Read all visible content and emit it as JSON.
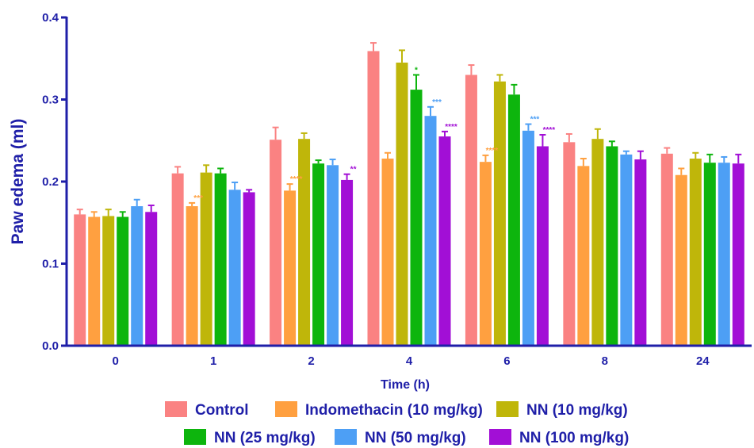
{
  "chart_data": {
    "type": "bar",
    "xlabel": "Time (h)",
    "ylabel": "Paw edema (ml)",
    "ylim": [
      0,
      0.4
    ],
    "yticks": [
      0.0,
      0.1,
      0.2,
      0.3,
      0.4
    ],
    "ytick_labels": [
      "0.0",
      "0.1",
      "0.2",
      "0.3",
      "0.4"
    ],
    "categories": [
      "0",
      "1",
      "2",
      "4",
      "6",
      "8",
      "24"
    ],
    "grid": false,
    "legend_position": "bottom",
    "series": [
      {
        "name": "Control",
        "color": "#fa8282",
        "values": [
          0.16,
          0.21,
          0.251,
          0.359,
          0.33,
          0.248,
          0.234
        ],
        "errors": [
          0.006,
          0.008,
          0.015,
          0.01,
          0.012,
          0.01,
          0.007
        ],
        "significance": [
          "",
          "",
          "",
          "",
          "",
          "",
          ""
        ]
      },
      {
        "name": "Indomethacin (10 mg/kg)",
        "color": "#ffa040",
        "values": [
          0.157,
          0.17,
          0.189,
          0.228,
          0.224,
          0.219,
          0.208
        ],
        "errors": [
          0.006,
          0.004,
          0.008,
          0.007,
          0.008,
          0.009,
          0.008
        ],
        "significance": [
          "",
          "***",
          "****",
          "",
          "****",
          "",
          ""
        ]
      },
      {
        "name": "NN (10 mg/kg)",
        "color": "#bfb60a",
        "values": [
          0.158,
          0.211,
          0.252,
          0.345,
          0.322,
          0.252,
          0.228
        ],
        "errors": [
          0.008,
          0.009,
          0.007,
          0.015,
          0.008,
          0.012,
          0.007
        ],
        "significance": [
          "",
          "",
          "",
          "",
          "",
          "",
          ""
        ]
      },
      {
        "name": "NN (25 mg/kg)",
        "color": "#0db50d",
        "values": [
          0.157,
          0.21,
          0.222,
          0.312,
          0.306,
          0.243,
          0.223
        ],
        "errors": [
          0.006,
          0.006,
          0.004,
          0.018,
          0.012,
          0.006,
          0.01
        ],
        "significance": [
          "",
          "",
          "",
          "*",
          "",
          "",
          ""
        ]
      },
      {
        "name": "NN (50 mg/kg)",
        "color": "#4d9ff5",
        "values": [
          0.17,
          0.19,
          0.22,
          0.28,
          0.262,
          0.233,
          0.223
        ],
        "errors": [
          0.008,
          0.009,
          0.007,
          0.011,
          0.008,
          0.004,
          0.007
        ],
        "significance": [
          "",
          "",
          "",
          "***",
          "***",
          "",
          ""
        ]
      },
      {
        "name": "NN (100 mg/kg)",
        "color": "#a20fd6",
        "values": [
          0.163,
          0.187,
          0.202,
          0.255,
          0.243,
          0.227,
          0.222
        ],
        "errors": [
          0.008,
          0.003,
          0.007,
          0.006,
          0.014,
          0.01,
          0.011
        ],
        "significance": [
          "",
          "",
          "**",
          "****",
          "****",
          "",
          ""
        ]
      }
    ]
  }
}
